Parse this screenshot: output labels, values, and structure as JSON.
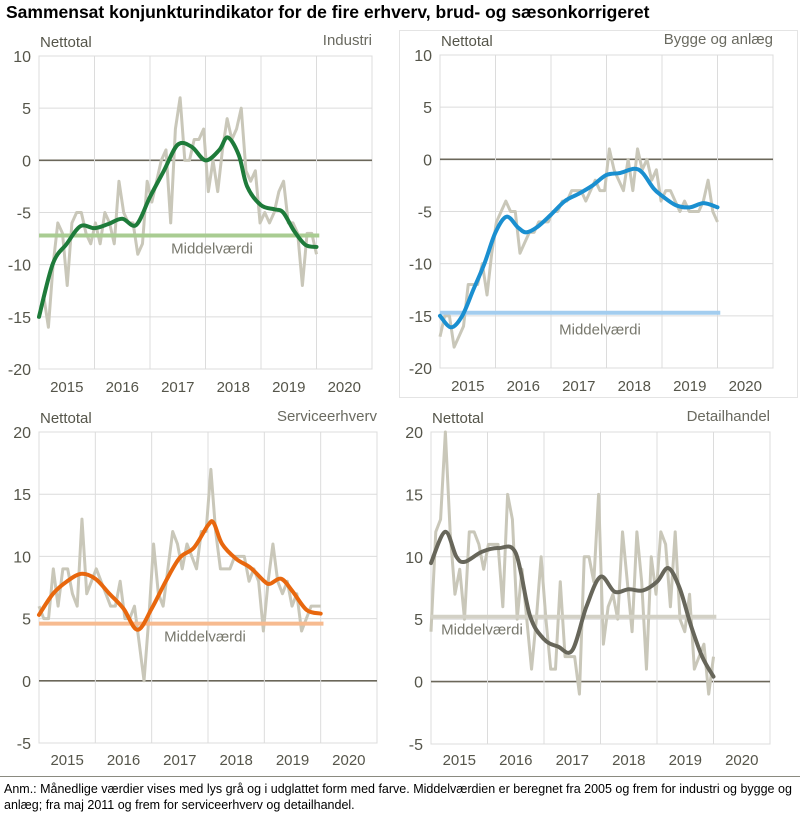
{
  "title": "Sammensat konjunkturindikator for de fire erhverv, brud- og sæsonkorrigeret",
  "note": "Anm.: Månedlige værdier vises med lys grå og i udglattet form med farve. Middelværdien er beregnet fra 2005 og frem for industri og bygge og anlæg; fra maj 2011 og frem for serviceerhverv og detailhandel.",
  "chart_data": [
    {
      "type": "line",
      "title": "Industri",
      "ylabel": "Nettotal",
      "ylim": [
        -20,
        10
      ],
      "yticks": [
        "10",
        "5",
        "0",
        "-5",
        "-10",
        "-15",
        "-20"
      ],
      "xlim": [
        2015,
        2021
      ],
      "xticks": [
        "2015",
        "2016",
        "2017",
        "2018",
        "2019",
        "2020"
      ],
      "grid": true,
      "mean_label": "Middelværdi",
      "mean": -7.2,
      "colors": {
        "smooth": "#1e7b3a",
        "mean": "#a9cc92",
        "raw": "#c9c7b9"
      },
      "raw_monthly": [
        -15,
        -13,
        -16,
        -10,
        -6,
        -7,
        -12,
        -6,
        -5,
        -5,
        -7,
        -8,
        -6,
        -8,
        -5,
        -6,
        -8,
        -2,
        -5,
        -6,
        -6,
        -9,
        -8,
        -2,
        -4,
        -2,
        0,
        1,
        -6,
        3,
        6,
        0,
        0,
        2,
        2,
        3,
        -3,
        0,
        -3,
        1,
        4,
        2,
        3,
        5,
        -1,
        -2,
        -1,
        -6,
        -5,
        -6,
        -5,
        -3,
        -2,
        -6,
        -6,
        -7,
        -12,
        -7,
        -7,
        -9
      ],
      "smoothed": {
        "x": [
          2015.0,
          2015.25,
          2015.5,
          2015.75,
          2016.0,
          2016.25,
          2016.5,
          2016.75,
          2017.0,
          2017.25,
          2017.5,
          2017.75,
          2018.0,
          2018.25,
          2018.4,
          2018.6,
          2018.75,
          2019.0,
          2019.25,
          2019.4,
          2019.6,
          2019.8,
          2020.0
        ],
        "y": [
          -15,
          -9.9,
          -8,
          -6.3,
          -6.5,
          -6.1,
          -5.6,
          -6.2,
          -3.5,
          -1,
          1.5,
          1.3,
          0,
          1,
          2.2,
          0.5,
          -2.5,
          -4.3,
          -4.7,
          -5,
          -6.8,
          -8.1,
          -8.3
        ]
      }
    },
    {
      "type": "line",
      "title": "Bygge og anlæg",
      "ylabel": "Nettotal",
      "ylim": [
        -20,
        10
      ],
      "yticks": [
        "10",
        "5",
        "0",
        "-5",
        "-10",
        "-15",
        "-20"
      ],
      "xlim": [
        2015,
        2021
      ],
      "xticks": [
        "2015",
        "2016",
        "2017",
        "2018",
        "2019",
        "2020"
      ],
      "grid": true,
      "mean_label": "Middelværdi",
      "mean": -14.7,
      "colors": {
        "smooth": "#1a8fd0",
        "mean": "#a3cdef",
        "raw": "#c9c7b9"
      },
      "raw_monthly": [
        -17,
        -15,
        -15,
        -18,
        -17,
        -16,
        -12,
        -12,
        -12,
        -10,
        -13,
        -9,
        -6,
        -5,
        -4,
        -5,
        -5,
        -9,
        -8,
        -7,
        -7,
        -6,
        -6,
        -6,
        -5,
        -5,
        -4,
        -4,
        -3,
        -3,
        -3,
        -4,
        -3,
        -2,
        -3,
        -3,
        1,
        -1,
        -2,
        -3,
        0,
        -3,
        1,
        -1,
        0,
        -2,
        -1,
        -4,
        -3,
        -3,
        -4,
        -5,
        -4,
        -5,
        -5,
        -5,
        -4,
        -2,
        -5,
        -6
      ],
      "smoothed": {
        "x": [
          2015.0,
          2015.2,
          2015.4,
          2015.6,
          2015.8,
          2016.0,
          2016.2,
          2016.4,
          2016.55,
          2016.75,
          2017.0,
          2017.25,
          2017.5,
          2017.75,
          2018.0,
          2018.25,
          2018.5,
          2018.65,
          2018.85,
          2019.0,
          2019.25,
          2019.5,
          2019.75,
          2020.0
        ],
        "y": [
          -15,
          -16.1,
          -15,
          -12.5,
          -10,
          -7,
          -5.5,
          -6.5,
          -7,
          -6.5,
          -5.3,
          -4,
          -3.3,
          -2.5,
          -1.5,
          -1.3,
          -0.9,
          -1.3,
          -2.8,
          -3.5,
          -4.4,
          -4.6,
          -4.2,
          -4.6
        ]
      }
    },
    {
      "type": "line",
      "title": "Serviceerhverv",
      "ylabel": "Nettotal",
      "ylim": [
        -5,
        20
      ],
      "yticks": [
        "20",
        "15",
        "10",
        "5",
        "0",
        "-5"
      ],
      "xlim": [
        2015,
        2021
      ],
      "xticks": [
        "2015",
        "2016",
        "2017",
        "2018",
        "2019",
        "2020"
      ],
      "grid": true,
      "mean_label": "Middelværdi",
      "mean": 4.6,
      "colors": {
        "smooth": "#e8670e",
        "mean": "#f7bb90",
        "raw": "#c9c7b9"
      },
      "raw_monthly": [
        6,
        5,
        5,
        9,
        6,
        9,
        9,
        7,
        6,
        13,
        7,
        8,
        9,
        8,
        7,
        6,
        6,
        8,
        5,
        5,
        6,
        3,
        0,
        5,
        11,
        7,
        6,
        9,
        12,
        11,
        9,
        11,
        10,
        9,
        12,
        12,
        17,
        12,
        9,
        9,
        9,
        10,
        10,
        10,
        8,
        9,
        8,
        4,
        8,
        11,
        8,
        7,
        8,
        6,
        7,
        4,
        5,
        6,
        6,
        6
      ],
      "smoothed": {
        "x": [
          2015.0,
          2015.25,
          2015.5,
          2015.75,
          2016.0,
          2016.25,
          2016.5,
          2016.75,
          2017.0,
          2017.25,
          2017.5,
          2017.75,
          2018.0,
          2018.1,
          2018.25,
          2018.5,
          2018.75,
          2019.0,
          2019.1,
          2019.3,
          2019.5,
          2019.75,
          2020.0
        ],
        "y": [
          5.3,
          7,
          8,
          8.6,
          8.2,
          7,
          5.8,
          4.1,
          5.8,
          8,
          9.9,
          10.7,
          12.5,
          12.7,
          11,
          9.8,
          9.1,
          8,
          7.8,
          8.2,
          7.2,
          5.7,
          5.4
        ]
      }
    },
    {
      "type": "line",
      "title": "Detailhandel",
      "ylabel": "Nettotal",
      "ylim": [
        -5,
        20
      ],
      "yticks": [
        "20",
        "15",
        "10",
        "5",
        "0",
        "-5"
      ],
      "xlim": [
        2015,
        2021
      ],
      "xticks": [
        "2015",
        "2016",
        "2017",
        "2018",
        "2019",
        "2020"
      ],
      "grid": true,
      "mean_label": "Middelværdi",
      "mean": 5.2,
      "colors": {
        "smooth": "#67665a",
        "mean": "#d3d1c6",
        "raw": "#c9c7b9"
      },
      "raw_monthly": [
        4,
        12,
        13,
        20,
        12,
        7,
        9,
        5,
        12,
        12,
        11,
        9,
        11,
        11,
        11,
        6,
        15,
        13,
        5,
        9,
        5,
        1,
        5,
        10,
        5,
        1,
        1,
        8,
        2,
        2,
        2,
        -1,
        10,
        10,
        8,
        15,
        3,
        6,
        7,
        5,
        12,
        8,
        4,
        12,
        8,
        1,
        10,
        7,
        12,
        11,
        6,
        12,
        5,
        4,
        7,
        1,
        2,
        3,
        -1,
        2
      ],
      "smoothed": {
        "x": [
          2015.0,
          2015.25,
          2015.45,
          2015.6,
          2015.9,
          2016.2,
          2016.5,
          2016.75,
          2017.0,
          2017.25,
          2017.5,
          2017.75,
          2018.0,
          2018.25,
          2018.5,
          2018.75,
          2019.0,
          2019.2,
          2019.4,
          2019.6,
          2019.8,
          2020.0
        ],
        "y": [
          9.5,
          12,
          10,
          9.6,
          10.4,
          10.7,
          10.3,
          5.3,
          3.4,
          2.8,
          2.5,
          6,
          8.4,
          7.2,
          7.4,
          7.3,
          8,
          9.1,
          7.5,
          4.5,
          2,
          0.4
        ]
      }
    }
  ]
}
